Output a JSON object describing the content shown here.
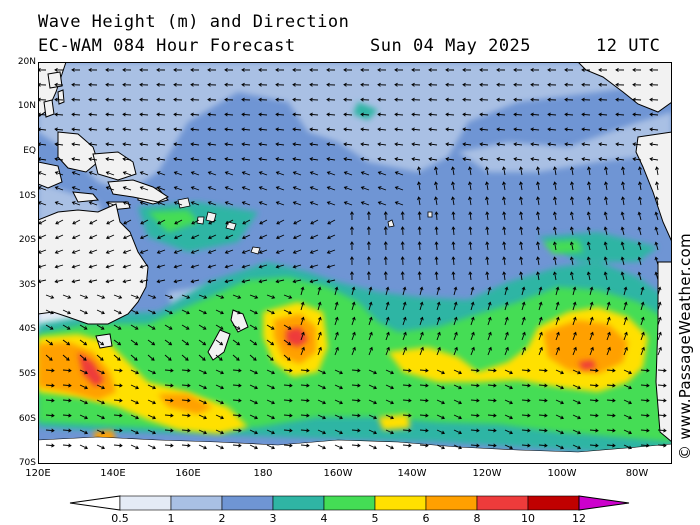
{
  "header": {
    "line1": "Wave Height (m) and Direction",
    "model": "EC-WAM 084 Hour Forecast",
    "date": "Sun 04 May 2025",
    "utc": "12 UTC"
  },
  "watermark": "© www.PassageWeather.com",
  "map": {
    "lat_labels": [
      "20N",
      "10N",
      "EQ",
      "10S",
      "20S",
      "30S",
      "40S",
      "50S",
      "60S",
      "70S"
    ],
    "lon_labels": [
      "120E",
      "140E",
      "160E",
      "180",
      "160W",
      "140W",
      "120W",
      "100W",
      "80W"
    ]
  },
  "legend": {
    "ticks": [
      "0.5",
      "1",
      "2",
      "3",
      "4",
      "5",
      "6",
      "8",
      "10",
      "12"
    ],
    "colors": [
      "#e4ebf6",
      "#a9c0e4",
      "#6f95d4",
      "#2fb5a4",
      "#44dd55",
      "#ffe000",
      "#ffa000",
      "#ee3b3b",
      "#c00000",
      "#cc00cc"
    ],
    "under_color": "#ffffff"
  },
  "colors": {
    "land": "#f2f2f2",
    "coast": "#000000",
    "arrow": "#000000",
    "ice_edge": "#ffffff"
  }
}
